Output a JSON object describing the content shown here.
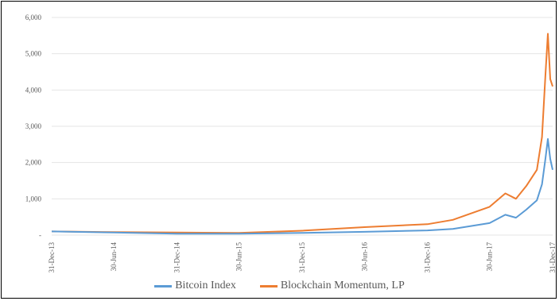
{
  "chart_data": {
    "type": "line",
    "title": "",
    "xlabel": "",
    "ylabel": "",
    "ylim": [
      0,
      6000
    ],
    "yticks": [
      "-",
      "1,000",
      "2,000",
      "3,000",
      "4,000",
      "5,000",
      "6,000"
    ],
    "xticks": [
      "31-Dec-13",
      "30-Jun-14",
      "31-Dec-14",
      "30-Jun-15",
      "31-Dec-15",
      "30-Jun-16",
      "31-Dec-16",
      "30-Jun-17",
      "31-Dec-17"
    ],
    "grid": true,
    "legend_position": "bottom",
    "x": [
      "31-Dec-13",
      "30-Jun-14",
      "31-Dec-14",
      "30-Jun-15",
      "31-Dec-15",
      "30-Jun-16",
      "31-Dec-16",
      "15-Mar-17",
      "30-Jun-17",
      "15-Aug-17",
      "15-Sep-17",
      "15-Oct-17",
      "15-Nov-17",
      "30-Nov-17",
      "10-Dec-17",
      "17-Dec-17",
      "24-Dec-17",
      "31-Dec-17"
    ],
    "series": [
      {
        "name": "Bitcoin Index",
        "color": "#5B9BD5",
        "values": [
          100,
          70,
          40,
          40,
          60,
          90,
          130,
          170,
          330,
          560,
          480,
          700,
          960,
          1400,
          2100,
          2650,
          2100,
          1800
        ]
      },
      {
        "name": "Blockchain Momentum, LP",
        "color": "#ED7D31",
        "values": [
          100,
          80,
          70,
          60,
          120,
          220,
          300,
          420,
          780,
          1150,
          1000,
          1350,
          1800,
          2700,
          4400,
          5550,
          4300,
          4100
        ]
      }
    ]
  }
}
